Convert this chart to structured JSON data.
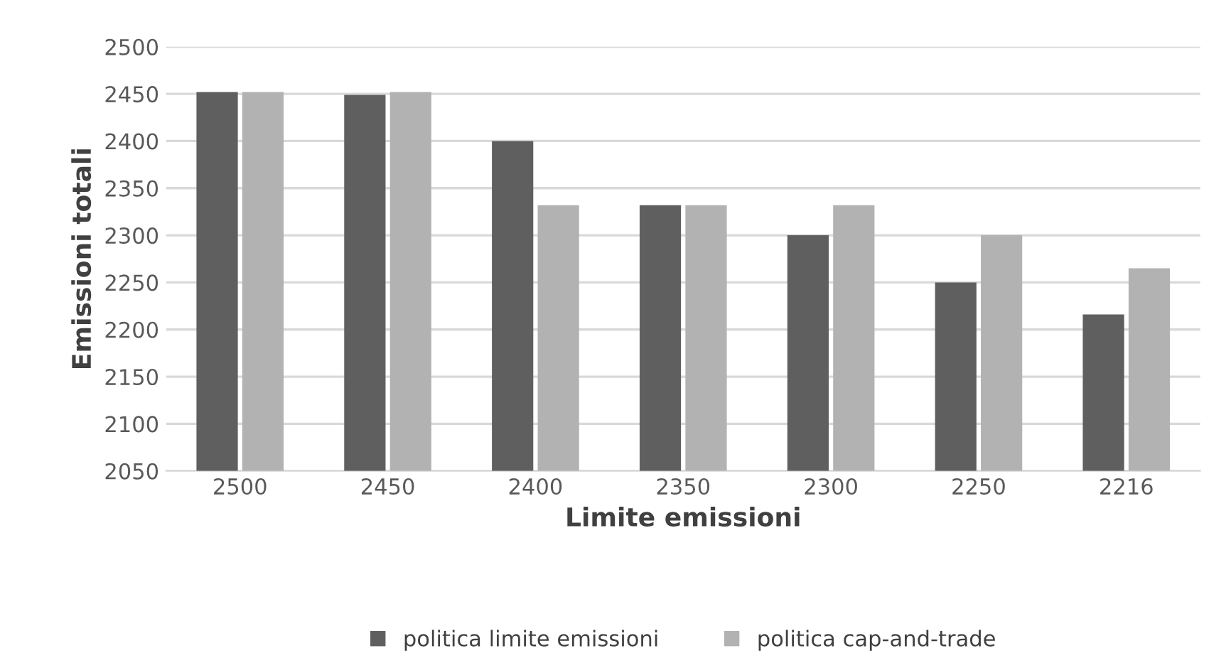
{
  "chart_data": {
    "type": "bar",
    "xlabel": "Limite emissioni",
    "ylabel": "Emissioni totali",
    "categories": [
      "2500",
      "2450",
      "2400",
      "2350",
      "2300",
      "2250",
      "2216"
    ],
    "series": [
      {
        "name": "politica limite emissioni",
        "color": "#5f5f5f",
        "values": [
          2452,
          2449,
          2400,
          2332,
          2300,
          2250,
          2216
        ]
      },
      {
        "name": "politica cap-and-trade",
        "color": "#b2b2b2",
        "values": [
          2452,
          2452,
          2332,
          2332,
          2332,
          2300,
          2265
        ]
      }
    ],
    "ylim": [
      2050,
      2500
    ],
    "yticks": [
      2050,
      2100,
      2150,
      2200,
      2250,
      2300,
      2350,
      2400,
      2450,
      2500
    ],
    "grid": "y",
    "legend": "bottom"
  }
}
